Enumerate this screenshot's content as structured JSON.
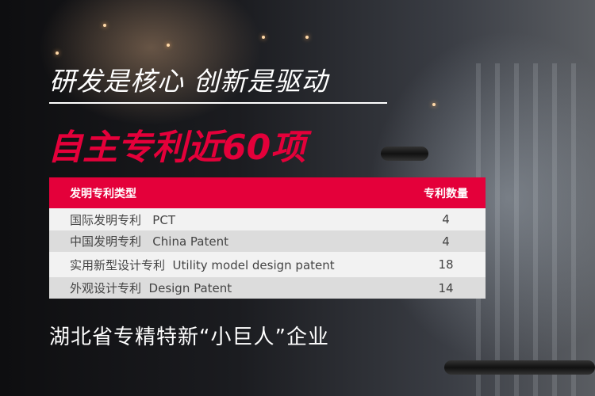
{
  "headline": "研发是核心 创新是驱动",
  "subheadline": "自主专利近60项",
  "table": {
    "header": {
      "type": "发明专利类型",
      "count": "专利数量"
    },
    "rows": [
      {
        "type": "国际发明专利   PCT",
        "count": "4"
      },
      {
        "type": "中国发明专利   China Patent",
        "count": "4"
      },
      {
        "type": "实用新型设计专利  Utility model design patent",
        "count": "18"
      },
      {
        "type": "外观设计专利  Design Patent",
        "count": "14"
      }
    ]
  },
  "footer": "湖北省专精特新“小巨人”企业",
  "colors": {
    "accent": "#e4003a"
  }
}
